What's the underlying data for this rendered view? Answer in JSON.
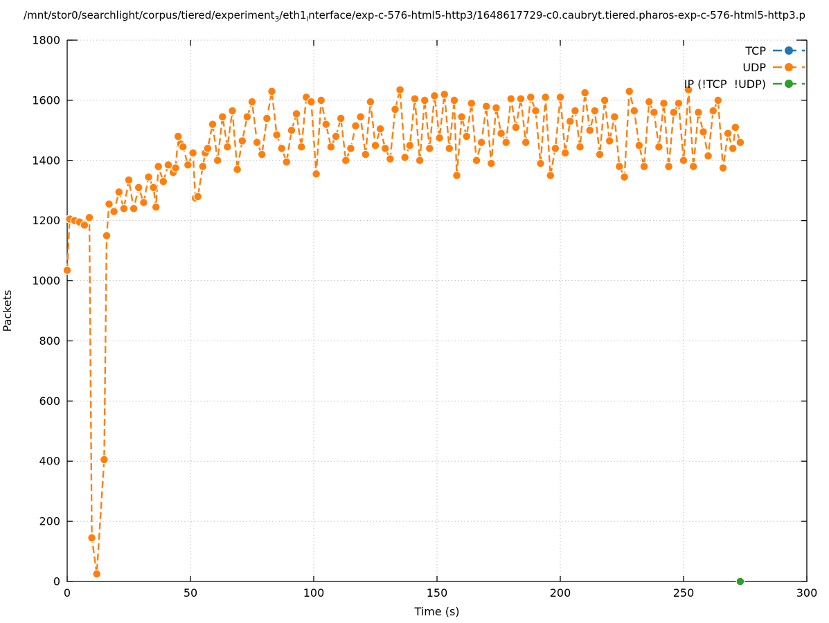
{
  "title": {
    "seg1": "/mnt/stor0/searchlight/corpus/tiered/experiment",
    "sub1": "3",
    "seg2": "/eth1",
    "sub2": "i",
    "seg3": "nterface/exp-c-576-html5-http3/1648617729-c0.caubryt.tiered.pharos-exp-c-576-html5-http3.p"
  },
  "legend": {
    "items": [
      {
        "label": "TCP",
        "color": "#1f77b4"
      },
      {
        "label": "UDP",
        "color": "#ff7f0e"
      },
      {
        "label": "IP (!TCP  !UDP)",
        "color": "#2ca02c"
      }
    ]
  },
  "colors": {
    "tcp_blue": "#1f77b4",
    "udp_orange": "#ff7f0e",
    "ip_green": "#2ca02c",
    "grid_gray": "#bdbdbd",
    "axis_black": "#000000"
  },
  "chart_data": {
    "type": "line",
    "title": "/mnt/stor0/searchlight/corpus/tiered/experiment₃/eth1ᵢnterface/exp-c-576-html5-http3/1648617729-c0.caubryt.tiered.pharos-exp-c-576-html5-http3.p",
    "xlabel": "Time (s)",
    "ylabel": "Packets",
    "xlim": [
      0,
      300
    ],
    "ylim": [
      0,
      1800
    ],
    "xticks": [
      0,
      50,
      100,
      150,
      200,
      250,
      300
    ],
    "yticks": [
      0,
      200,
      400,
      600,
      800,
      1000,
      1200,
      1400,
      1600,
      1800
    ],
    "grid": true,
    "grid_style": "dotted",
    "line_style": "dashed",
    "marker": "circle",
    "legend_position": "top-right-inside",
    "series": [
      {
        "name": "TCP",
        "color": "#1f77b4",
        "points": []
      },
      {
        "name": "UDP",
        "color": "#ff7f0e",
        "points": [
          [
            0,
            1035
          ],
          [
            1,
            1205
          ],
          [
            3,
            1200
          ],
          [
            5,
            1195
          ],
          [
            7,
            1185
          ],
          [
            9,
            1210
          ],
          [
            10,
            145
          ],
          [
            12,
            25
          ],
          [
            15,
            405
          ],
          [
            16,
            1150
          ],
          [
            17,
            1255
          ],
          [
            19,
            1230
          ],
          [
            21,
            1295
          ],
          [
            23,
            1240
          ],
          [
            25,
            1335
          ],
          [
            27,
            1240
          ],
          [
            29,
            1310
          ],
          [
            31,
            1260
          ],
          [
            33,
            1345
          ],
          [
            35,
            1310
          ],
          [
            36,
            1245
          ],
          [
            37,
            1380
          ],
          [
            39,
            1330
          ],
          [
            41,
            1385
          ],
          [
            43,
            1360
          ],
          [
            44,
            1375
          ],
          [
            45,
            1480
          ],
          [
            46,
            1455
          ],
          [
            47,
            1445
          ],
          [
            49,
            1385
          ],
          [
            51,
            1425
          ],
          [
            52,
            1275
          ],
          [
            53,
            1280
          ],
          [
            55,
            1380
          ],
          [
            56,
            1425
          ],
          [
            57,
            1440
          ],
          [
            59,
            1520
          ],
          [
            61,
            1400
          ],
          [
            63,
            1545
          ],
          [
            65,
            1445
          ],
          [
            67,
            1565
          ],
          [
            69,
            1370
          ],
          [
            71,
            1465
          ],
          [
            73,
            1545
          ],
          [
            75,
            1595
          ],
          [
            77,
            1460
          ],
          [
            79,
            1420
          ],
          [
            81,
            1540
          ],
          [
            83,
            1630
          ],
          [
            85,
            1485
          ],
          [
            87,
            1440
          ],
          [
            89,
            1395
          ],
          [
            91,
            1500
          ],
          [
            93,
            1555
          ],
          [
            95,
            1445
          ],
          [
            97,
            1610
          ],
          [
            99,
            1595
          ],
          [
            101,
            1355
          ],
          [
            103,
            1600
          ],
          [
            105,
            1520
          ],
          [
            107,
            1445
          ],
          [
            109,
            1480
          ],
          [
            111,
            1540
          ],
          [
            113,
            1400
          ],
          [
            115,
            1440
          ],
          [
            117,
            1515
          ],
          [
            119,
            1545
          ],
          [
            121,
            1420
          ],
          [
            123,
            1595
          ],
          [
            125,
            1450
          ],
          [
            127,
            1505
          ],
          [
            129,
            1440
          ],
          [
            131,
            1405
          ],
          [
            133,
            1570
          ],
          [
            135,
            1635
          ],
          [
            137,
            1410
          ],
          [
            139,
            1450
          ],
          [
            141,
            1605
          ],
          [
            143,
            1400
          ],
          [
            145,
            1600
          ],
          [
            147,
            1440
          ],
          [
            149,
            1615
          ],
          [
            151,
            1475
          ],
          [
            153,
            1620
          ],
          [
            155,
            1440
          ],
          [
            157,
            1600
          ],
          [
            158,
            1350
          ],
          [
            160,
            1545
          ],
          [
            162,
            1480
          ],
          [
            164,
            1590
          ],
          [
            166,
            1400
          ],
          [
            168,
            1460
          ],
          [
            170,
            1580
          ],
          [
            172,
            1390
          ],
          [
            174,
            1575
          ],
          [
            176,
            1490
          ],
          [
            178,
            1460
          ],
          [
            180,
            1605
          ],
          [
            182,
            1510
          ],
          [
            184,
            1605
          ],
          [
            186,
            1460
          ],
          [
            188,
            1610
          ],
          [
            190,
            1565
          ],
          [
            192,
            1390
          ],
          [
            194,
            1610
          ],
          [
            196,
            1350
          ],
          [
            198,
            1440
          ],
          [
            200,
            1610
          ],
          [
            202,
            1425
          ],
          [
            204,
            1530
          ],
          [
            206,
            1565
          ],
          [
            208,
            1445
          ],
          [
            210,
            1625
          ],
          [
            212,
            1500
          ],
          [
            214,
            1565
          ],
          [
            216,
            1420
          ],
          [
            218,
            1600
          ],
          [
            220,
            1465
          ],
          [
            222,
            1545
          ],
          [
            224,
            1380
          ],
          [
            226,
            1345
          ],
          [
            228,
            1630
          ],
          [
            230,
            1565
          ],
          [
            232,
            1450
          ],
          [
            234,
            1380
          ],
          [
            236,
            1595
          ],
          [
            238,
            1560
          ],
          [
            240,
            1445
          ],
          [
            242,
            1590
          ],
          [
            244,
            1380
          ],
          [
            246,
            1560
          ],
          [
            248,
            1590
          ],
          [
            250,
            1400
          ],
          [
            252,
            1635
          ],
          [
            254,
            1380
          ],
          [
            256,
            1560
          ],
          [
            258,
            1495
          ],
          [
            260,
            1415
          ],
          [
            262,
            1565
          ],
          [
            264,
            1600
          ],
          [
            266,
            1375
          ],
          [
            268,
            1490
          ],
          [
            270,
            1440
          ],
          [
            271,
            1510
          ],
          [
            273,
            1460
          ]
        ]
      },
      {
        "name": "IP (!TCP  !UDP)",
        "color": "#2ca02c",
        "points": [
          [
            273,
            0
          ]
        ]
      }
    ]
  }
}
